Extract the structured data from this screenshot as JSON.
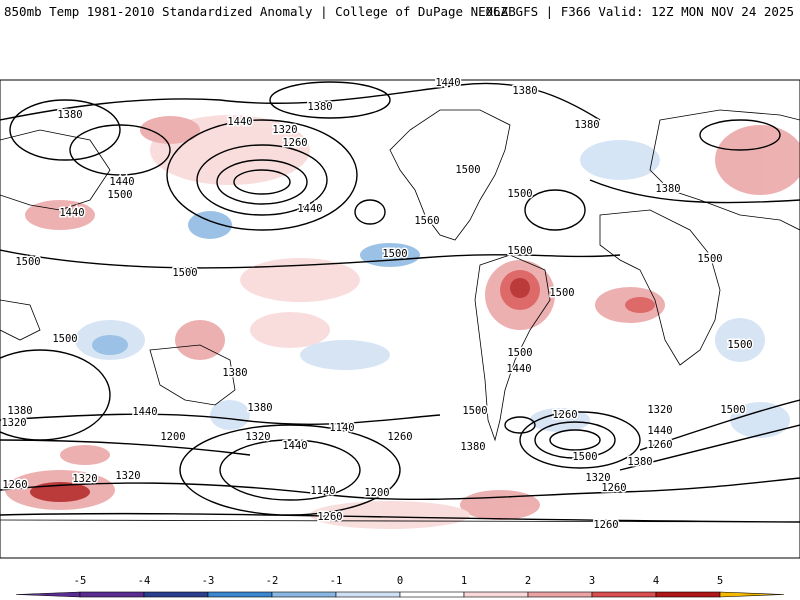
{
  "header": {
    "title": "850mb Temp 1981-2010 Standardized Anomaly | College of DuPage NEXLAB",
    "run": "06Z GFS | F366 Valid: 12Z MON NOV 24 2025"
  },
  "colorbar": {
    "ticks": [
      "-5",
      "-4",
      "-3",
      "-2",
      "-1",
      "0",
      "1",
      "2",
      "3",
      "4",
      "5"
    ],
    "colors": [
      "#5a2d91",
      "#2b3f8f",
      "#3a86cf",
      "#8ab7e2",
      "#cfe0f3",
      "#ffffff",
      "#f8d8d8",
      "#eaa3a3",
      "#d94f4f",
      "#b01818",
      "#f5b800"
    ]
  },
  "contour_labels": [
    "1440",
    "1380",
    "1380",
    "1380",
    "1320",
    "1260",
    "1440",
    "1500",
    "1500",
    "1440",
    "1380",
    "1380",
    "1440",
    "1500",
    "1440",
    "1560",
    "1500",
    "1500",
    "1500",
    "1500",
    "1500",
    "1500",
    "1500",
    "1500",
    "1500",
    "1440",
    "1380",
    "1380",
    "1380",
    "1320",
    "1440",
    "1260",
    "1320",
    "1440",
    "1200",
    "1140",
    "1500",
    "1260",
    "1380",
    "1320",
    "1260",
    "1320",
    "1140",
    "1200",
    "1260",
    "1320",
    "1320",
    "1260",
    "1500",
    "1440",
    "1380",
    "1500",
    "1260",
    "1260"
  ]
}
